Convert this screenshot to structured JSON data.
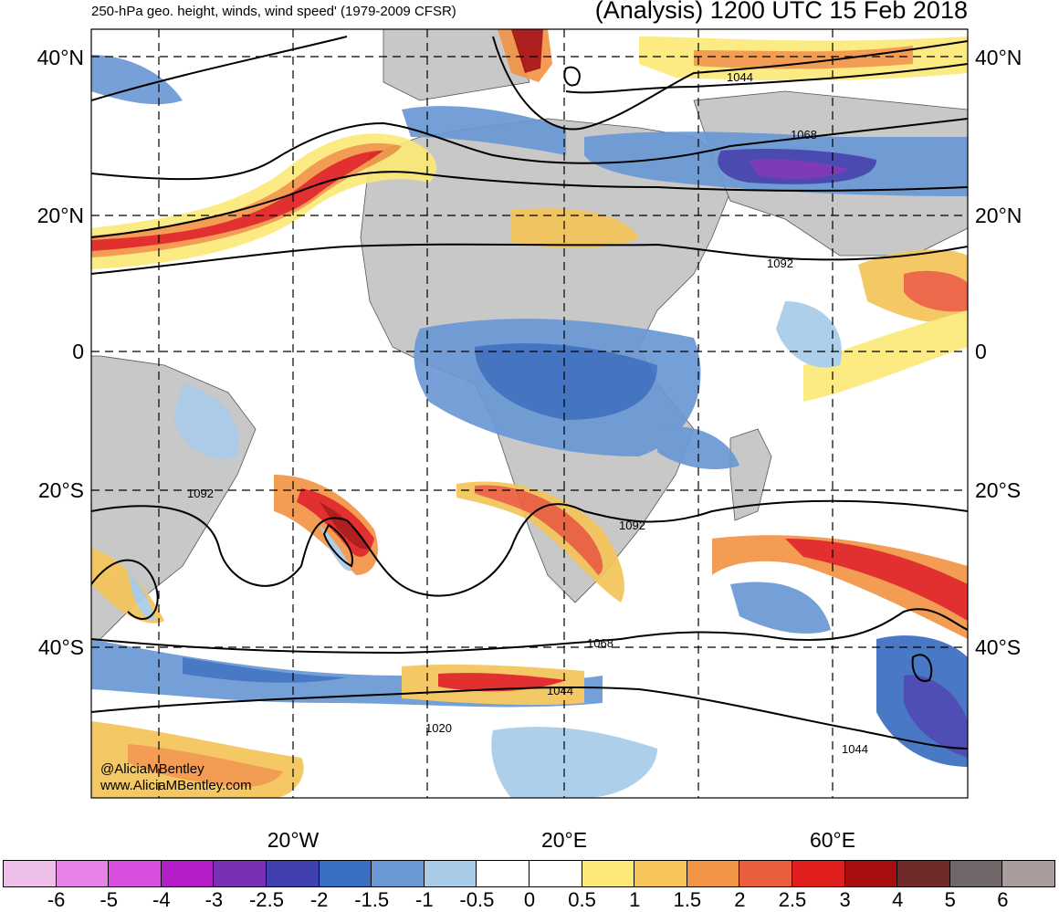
{
  "header": {
    "left_title": "250-hPa geo. height, winds, wind speed' (1979-2009 CFSR)",
    "right_title": "(Analysis) 1200 UTC 15 Feb 2018"
  },
  "lat_labels": [
    "40°N",
    "20°N",
    "0",
    "20°S",
    "40°S"
  ],
  "lon_labels": [
    "20°W",
    "20°E",
    "60°E"
  ],
  "contour_labels": [
    "1044",
    "1068",
    "1092",
    "1092",
    "1092",
    "1068",
    "1044",
    "1020",
    "1044"
  ],
  "credit": {
    "handle": "@AliciaMBentley",
    "site": "www.AliciaMBentley.com"
  },
  "colorbar": {
    "labels": [
      "-6",
      "-5",
      "-4",
      "-3",
      "-2.5",
      "-2",
      "-1.5",
      "-1",
      "-0.5",
      "0",
      "0.5",
      "1",
      "1.5",
      "2",
      "2.5",
      "3",
      "4",
      "5",
      "6"
    ],
    "colors": [
      "#eebfe8",
      "#e682e6",
      "#d74fdc",
      "#b41ec8",
      "#7830b4",
      "#4040b0",
      "#3a6ec0",
      "#6a98d4",
      "#a8cbe8",
      "#ffffff",
      "#ffffff",
      "#fce978",
      "#f5c45a",
      "#f19446",
      "#eb5e3c",
      "#e01e1e",
      "#a80e0e",
      "#702a2a",
      "#706868",
      "#a89c9c"
    ]
  },
  "colors": {
    "land": "#c8c8c8",
    "ocean": "#ffffff"
  }
}
